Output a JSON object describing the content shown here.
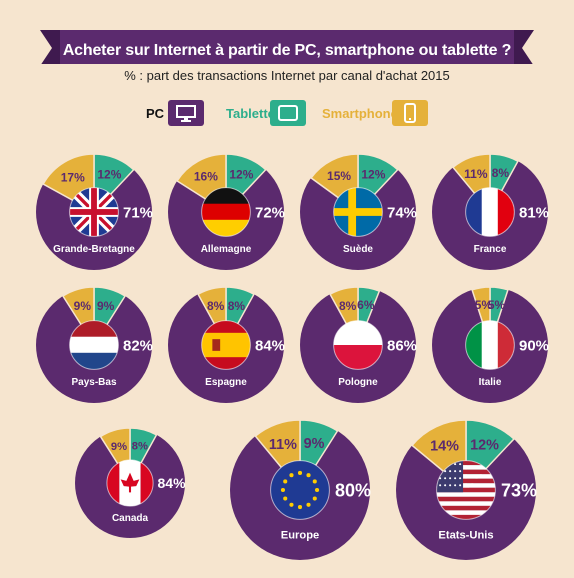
{
  "title": "Acheter sur Internet à partir de PC, smartphone ou tablette ?",
  "subtitle": "% : part des transactions Internet par canal d'achat 2015",
  "colors": {
    "pc": "#5b2a6e",
    "tablette": "#2dae8c",
    "smartphone": "#e5b13a",
    "background": "#f6e5cf"
  },
  "legend": {
    "pc": "PC",
    "tablette": "Tablette",
    "smartphone": "Smartphone",
    "pc_icon": "desktop-monitor-icon",
    "tablette_icon": "tablet-icon",
    "smartphone_icon": "smartphone-icon"
  },
  "chart_data": {
    "type": "pie",
    "title": "Acheter sur Internet à partir de PC, smartphone ou tablette ?",
    "subtitle": "% : part des transactions Internet par canal d'achat 2015",
    "series_names": [
      "PC",
      "Tablette",
      "Smartphone"
    ],
    "countries": [
      {
        "name": "Grande-Bretagne",
        "flag": "uk-flag",
        "pc": 71,
        "tablette": 12,
        "smartphone": 17
      },
      {
        "name": "Allemagne",
        "flag": "germany-flag",
        "pc": 72,
        "tablette": 12,
        "smartphone": 16
      },
      {
        "name": "Suède",
        "flag": "sweden-flag",
        "pc": 74,
        "tablette": 12,
        "smartphone": 15
      },
      {
        "name": "France",
        "flag": "france-flag",
        "pc": 81,
        "tablette": 8,
        "smartphone": 11
      },
      {
        "name": "Pays-Bas",
        "flag": "netherlands-flag",
        "pc": 82,
        "tablette": 9,
        "smartphone": 9
      },
      {
        "name": "Espagne",
        "flag": "spain-flag",
        "pc": 84,
        "tablette": 8,
        "smartphone": 8
      },
      {
        "name": "Pologne",
        "flag": "poland-flag",
        "pc": 86,
        "tablette": 6,
        "smartphone": 8
      },
      {
        "name": "Italie",
        "flag": "italy-flag",
        "pc": 90,
        "tablette": 5,
        "smartphone": 5
      },
      {
        "name": "Canada",
        "flag": "canada-flag",
        "pc": 84,
        "tablette": 8,
        "smartphone": 9
      },
      {
        "name": "Europe",
        "flag": "eu-flag",
        "pc": 80,
        "tablette": 9,
        "smartphone": 11
      },
      {
        "name": "Etats-Unis",
        "flag": "usa-flag",
        "pc": 73,
        "tablette": 12,
        "smartphone": 14
      }
    ]
  }
}
